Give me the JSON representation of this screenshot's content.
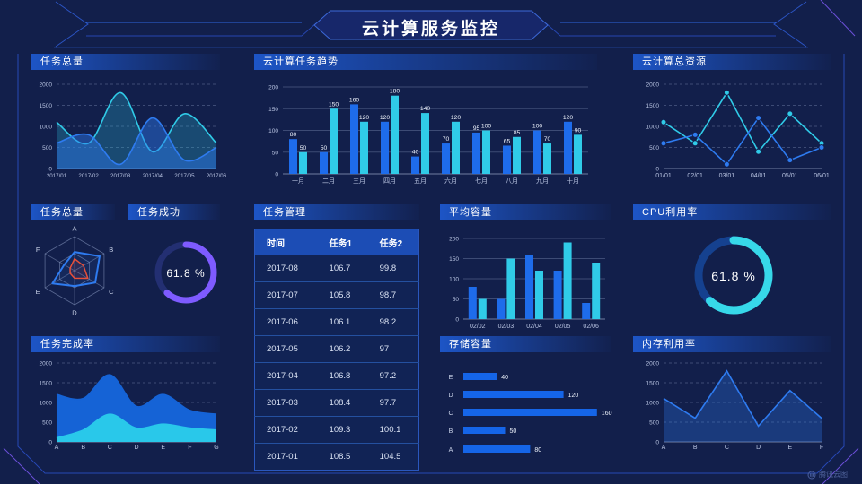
{
  "page_title": "云计算服务监控",
  "watermark": {
    "brand": "腾讯云图"
  },
  "colors": {
    "blue": "#1e6ceb",
    "cyan": "#30cbe8",
    "purple": "#7e5bff",
    "red": "#e8503a",
    "background": "#121f4b"
  },
  "chart_data": [
    {
      "type": "area",
      "title": "任务总量",
      "smooth": true,
      "grid": "dashed",
      "x": [
        "2017/01",
        "2017/02",
        "2017/03",
        "2017/04",
        "2017/05",
        "2017/06"
      ],
      "ylim": [
        0,
        2000
      ],
      "yticks": [
        0,
        500,
        1000,
        1500,
        2000
      ],
      "series": [
        {
          "name": "cyan-series",
          "color": "#30cbe8",
          "fill": "rgba(48,203,232,0.25)",
          "values": [
            1100,
            600,
            1800,
            400,
            1300,
            600
          ]
        },
        {
          "name": "blue-series",
          "color": "#2e7bf0",
          "fill": "rgba(46,123,240,0.45)",
          "values": [
            600,
            800,
            100,
            1200,
            200,
            500
          ]
        }
      ]
    },
    {
      "type": "bar",
      "title": "云计算任务趋势",
      "value_labels": true,
      "categories": [
        "一月",
        "二月",
        "三月",
        "四月",
        "五月",
        "六月",
        "七月",
        "八月",
        "九月",
        "十月"
      ],
      "ylim": [
        0,
        200
      ],
      "yticks": [
        0,
        50,
        100,
        150,
        200
      ],
      "series": [
        {
          "name": "blue-series",
          "color": "#1e6ceb",
          "values": [
            80,
            50,
            160,
            120,
            40,
            70,
            95,
            65,
            100,
            120
          ]
        },
        {
          "name": "cyan-series",
          "color": "#30cbe8",
          "values": [
            50,
            150,
            120,
            180,
            140,
            120,
            100,
            85,
            70,
            90
          ]
        }
      ]
    },
    {
      "type": "line",
      "title": "云计算总资源",
      "markers": true,
      "grid": "dashed",
      "x": [
        "01/01",
        "02/01",
        "03/01",
        "04/01",
        "05/01",
        "06/01"
      ],
      "ylim": [
        0,
        2000
      ],
      "yticks": [
        0,
        500,
        1000,
        1500,
        2000
      ],
      "series": [
        {
          "name": "cyan-series",
          "color": "#30cbe8",
          "values": [
            1100,
            600,
            1800,
            400,
            1300,
            600
          ]
        },
        {
          "name": "blue-series",
          "color": "#2e7bf0",
          "values": [
            600,
            800,
            100,
            1200,
            200,
            500
          ]
        }
      ]
    },
    {
      "type": "radar",
      "title": "任务总量",
      "axes": [
        "A",
        "B",
        "C",
        "D",
        "E",
        "F"
      ],
      "max": 100,
      "series": [
        {
          "name": "blue-series",
          "color": "#2e7bf0",
          "values": [
            55,
            85,
            70,
            45,
            75,
            35
          ]
        },
        {
          "name": "red-series",
          "color": "#e8503a",
          "values": [
            35,
            30,
            45,
            22,
            15,
            15
          ]
        }
      ]
    },
    {
      "type": "gauge",
      "title": "任务成功",
      "value": "61.8",
      "unit": "%",
      "percent": 61.8,
      "color": "#7e5bff",
      "track": "#232f72"
    },
    {
      "type": "table",
      "title": "任务管理",
      "columns": [
        "时间",
        "任务1",
        "任务2"
      ],
      "rows": [
        [
          "2017-08",
          "106.7",
          "99.8"
        ],
        [
          "2017-07",
          "105.8",
          "98.7"
        ],
        [
          "2017-06",
          "106.1",
          "98.2"
        ],
        [
          "2017-05",
          "106.2",
          "97"
        ],
        [
          "2017-04",
          "106.8",
          "97.2"
        ],
        [
          "2017-03",
          "108.4",
          "97.7"
        ],
        [
          "2017-02",
          "109.3",
          "100.1"
        ],
        [
          "2017-01",
          "108.5",
          "104.5"
        ]
      ]
    },
    {
      "type": "bar",
      "title": "平均容量",
      "value_labels": false,
      "categories": [
        "02/02",
        "02/03",
        "02/04",
        "02/05",
        "02/06"
      ],
      "ylim": [
        0,
        200
      ],
      "yticks": [
        0,
        50,
        100,
        150,
        200
      ],
      "series": [
        {
          "name": "blue-series",
          "color": "#1e6ceb",
          "values": [
            80,
            50,
            160,
            120,
            40
          ]
        },
        {
          "name": "cyan-series",
          "color": "#30cbe8",
          "values": [
            50,
            150,
            120,
            190,
            140
          ]
        }
      ]
    },
    {
      "type": "gauge",
      "title": "CPU利用率",
      "value": "61.8",
      "unit": "%",
      "percent": 61.8,
      "color": "#37d8e9",
      "track": "#15418f"
    },
    {
      "type": "area",
      "title": "任务完成率",
      "smooth": true,
      "opaque": true,
      "grid": "dashed",
      "x": [
        "A",
        "B",
        "C",
        "D",
        "E",
        "F",
        "G"
      ],
      "ylim": [
        0,
        2000
      ],
      "yticks": [
        0,
        500,
        1000,
        1500,
        2000
      ],
      "series": [
        {
          "name": "blue-series",
          "color": "#1563d6",
          "values": [
            1200,
            1100,
            1700,
            900,
            1200,
            800,
            700
          ]
        },
        {
          "name": "cyan-series",
          "color": "#29c8ea",
          "values": [
            100,
            300,
            700,
            350,
            450,
            350,
            300
          ]
        }
      ]
    },
    {
      "type": "hbar",
      "title": "存储容量",
      "color": "#1565e8",
      "categories": [
        "E",
        "D",
        "C",
        "B",
        "A"
      ],
      "values": [
        40,
        120,
        160,
        50,
        80
      ],
      "xmax": 172
    },
    {
      "type": "line",
      "title": "内存利用率",
      "markers": false,
      "grid": "dashed",
      "x": [
        "A",
        "B",
        "C",
        "D",
        "E",
        "F"
      ],
      "ylim": [
        0,
        2000
      ],
      "yticks": [
        0,
        500,
        1000,
        1500,
        2000
      ],
      "series": [
        {
          "name": "blue-series",
          "color": "#2e7bf0",
          "fill": "rgba(46,123,240,0.30)",
          "values": [
            1100,
            600,
            1800,
            400,
            1300,
            600
          ]
        }
      ]
    }
  ]
}
